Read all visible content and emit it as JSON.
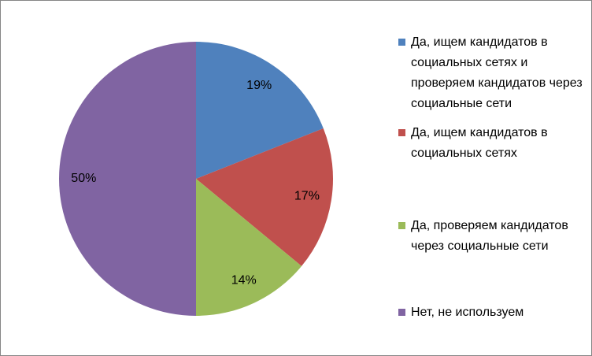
{
  "chart_data": {
    "type": "pie",
    "categories": [
      "Да, ищем кандидатов в социальных сетях и проверяем кандидатов через социальные сети",
      "Да, ищем кандидатов в социальных сетях",
      "Да, проверяем кандидатов через социальные сети",
      "Нет, не используем"
    ],
    "values": [
      19,
      17,
      14,
      50
    ],
    "value_labels": [
      "19%",
      "17%",
      "14%",
      "50%"
    ],
    "colors": [
      "#4f81bd",
      "#c0504d",
      "#9bbb59",
      "#8064a2"
    ],
    "legend": "right"
  }
}
